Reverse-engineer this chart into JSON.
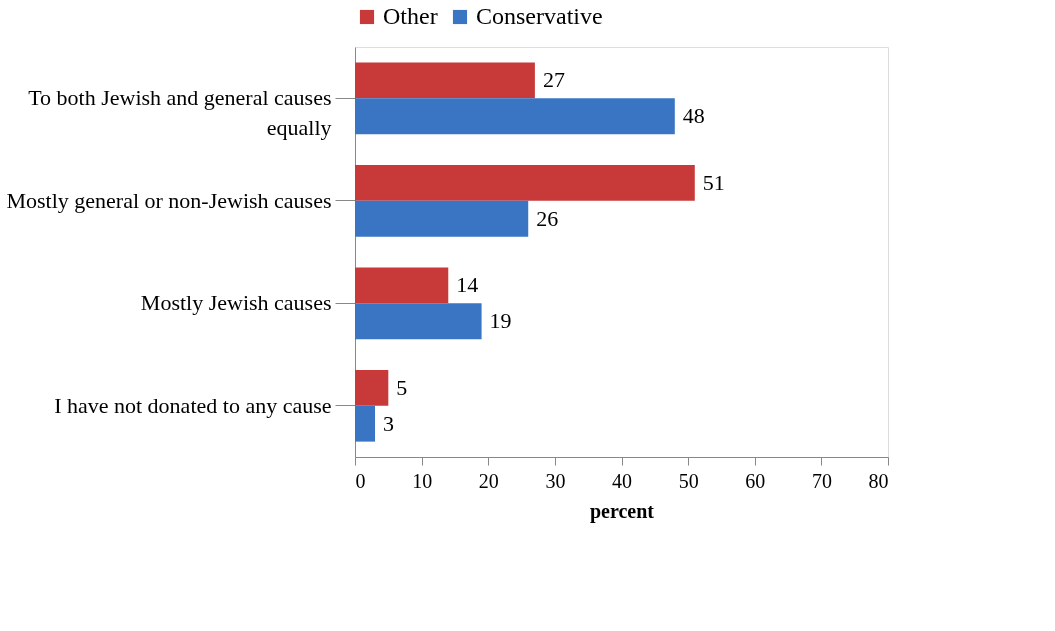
{
  "chart_data": {
    "type": "bar",
    "orientation": "horizontal",
    "categories": [
      "To both Jewish and general causes equally",
      "Mostly general or non-Jewish causes",
      "Mostly Jewish causes",
      "I have not donated to any cause"
    ],
    "series": [
      {
        "name": "Other",
        "color": "#c83a3a",
        "values": [
          27,
          51,
          14,
          5
        ]
      },
      {
        "name": "Conservative",
        "color": "#3a75c4",
        "values": [
          48,
          26,
          19,
          3
        ]
      }
    ],
    "xlim": [
      0,
      80
    ],
    "xticks": [
      0,
      10,
      20,
      30,
      40,
      50,
      60,
      70,
      80
    ],
    "xlabel": "percent",
    "data_labels": true,
    "legend": "top",
    "grid": false
  }
}
